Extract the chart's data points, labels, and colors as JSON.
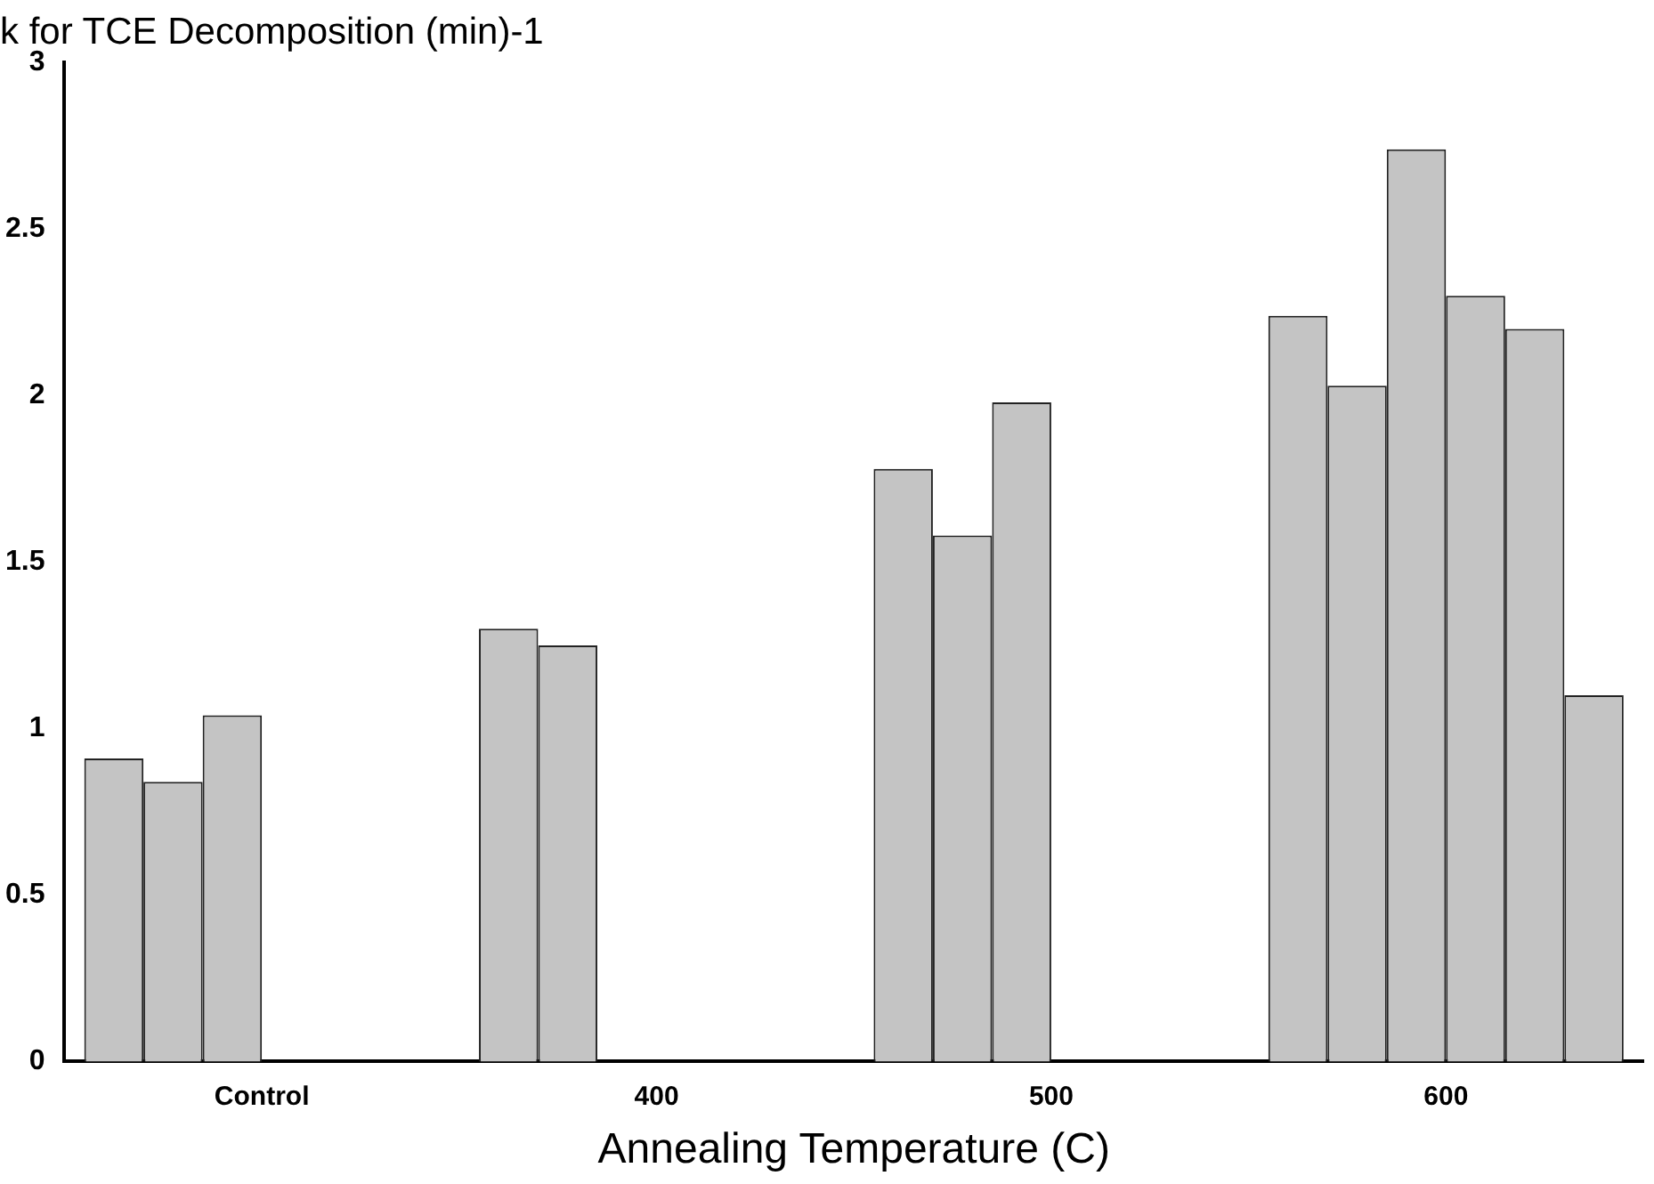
{
  "chart_data": {
    "type": "bar",
    "title": "k for TCE Decomposition (min)-1",
    "xlabel": "Annealing Temperature (C)",
    "categories": [
      "Control",
      "400",
      "500",
      "600"
    ],
    "series": [
      {
        "color": "#c4c4c4",
        "values": [
          0.91,
          1.3,
          1.78,
          2.24
        ]
      },
      {
        "color": "#c4c4c4",
        "values": [
          0.84,
          1.25,
          1.58,
          2.03
        ]
      },
      {
        "color": "#c4c4c4",
        "values": [
          1.04,
          null,
          1.98,
          2.74
        ]
      },
      {
        "color": "#c4c4c4",
        "values": [
          null,
          null,
          null,
          2.3
        ]
      },
      {
        "color": "#c4c4c4",
        "values": [
          null,
          null,
          null,
          2.2
        ]
      },
      {
        "color": "#c4c4c4",
        "values": [
          null,
          null,
          null,
          1.1
        ]
      }
    ],
    "ylim": [
      0,
      3
    ],
    "yticks": [
      0,
      0.5,
      1,
      1.5,
      2,
      2.5,
      3
    ],
    "grid": false,
    "legend": false
  }
}
